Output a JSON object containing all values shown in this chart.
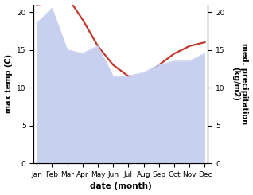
{
  "months": [
    "Jan",
    "Feb",
    "Mar",
    "Apr",
    "May",
    "Jun",
    "Jul",
    "Aug",
    "Sep",
    "Oct",
    "Nov",
    "Dec"
  ],
  "temp_max": [
    21.0,
    21.2,
    22.0,
    19.0,
    15.5,
    13.0,
    11.5,
    11.5,
    13.0,
    14.5,
    15.5,
    16.0
  ],
  "precip": [
    18.5,
    20.5,
    15.0,
    14.5,
    15.5,
    11.5,
    11.5,
    12.0,
    13.0,
    13.5,
    13.5,
    14.5
  ],
  "temp_color": "#c0392b",
  "precip_fill_color": "#c8d0f0",
  "ylim_left": [
    0,
    21
  ],
  "ylim_right": [
    0,
    21
  ],
  "yticks": [
    0,
    5,
    10,
    15,
    20
  ],
  "ylabel_left": "max temp (C)",
  "ylabel_right": "med. precipitation\n(kg/m2)",
  "xlabel": "date (month)",
  "bg_color": "#ffffff",
  "temp_linewidth": 1.6,
  "precip_linewidth": 0.8,
  "tick_fontsize": 6.5,
  "ylabel_fontsize": 7.0,
  "xlabel_fontsize": 7.5
}
